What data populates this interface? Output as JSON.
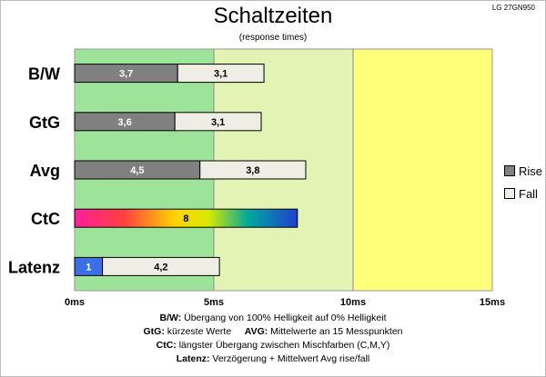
{
  "title": "Schaltzeiten",
  "subtitle": "(response times)",
  "model": "LG 27GN950",
  "colors": {
    "rise": "#808080",
    "fall": "#efeee4",
    "zone_green": "#9ee39a",
    "zone_lightgreen": "#e3f3b4",
    "zone_yellow": "#ffff7a",
    "latency_rise": "#3a6fe6"
  },
  "legend": {
    "rise": "Rise",
    "fall": "Fall"
  },
  "notes": [
    {
      "key": "B/W:",
      "text": "Übergang von 100% Helligkeit auf 0% Helligkeit"
    },
    {
      "key": "GtG:",
      "text": "kürzeste  Werte",
      "key2": "AVG:",
      "text2": "Mittelwerte  an 15 Messpunkten"
    },
    {
      "key": "CtC:",
      "text": "längster Übergang  zwischen Mischfarben  (C,M,Y)"
    },
    {
      "key": "Latenz:",
      "text": "Verzögerung  + Mittelwert  Avg rise/fall"
    }
  ],
  "chart_data": {
    "type": "bar",
    "orientation": "horizontal",
    "stacked": true,
    "categories": [
      "B/W",
      "GtG",
      "Avg",
      "CtC",
      "Latenz"
    ],
    "series": [
      {
        "name": "Rise",
        "values": [
          3.7,
          3.6,
          4.5,
          8,
          1
        ]
      },
      {
        "name": "Fall",
        "values": [
          3.1,
          3.1,
          3.8,
          null,
          4.2
        ]
      }
    ],
    "data_labels_rise": [
      "3,7",
      "3,6",
      "4,5",
      "8",
      "1"
    ],
    "data_labels_fall": [
      "3,1",
      "3,1",
      "3,8",
      "",
      "4,2"
    ],
    "xlim": [
      0,
      15
    ],
    "xticks": [
      0,
      5,
      10,
      15
    ],
    "xtick_labels": [
      "0ms",
      "5ms",
      "10ms",
      "15ms"
    ],
    "background_zones": [
      [
        0,
        5
      ],
      [
        5,
        10
      ],
      [
        10,
        15
      ]
    ],
    "legend_position": "right",
    "grid": true
  }
}
